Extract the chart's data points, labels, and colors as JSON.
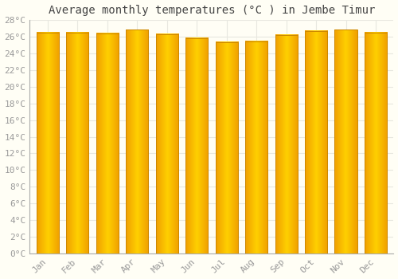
{
  "title": "Average monthly temperatures (°C ) in Jembe Timur",
  "months": [
    "Jan",
    "Feb",
    "Mar",
    "Apr",
    "May",
    "Jun",
    "Jul",
    "Aug",
    "Sep",
    "Oct",
    "Nov",
    "Dec"
  ],
  "temperatures": [
    26.5,
    26.5,
    26.4,
    26.8,
    26.3,
    25.8,
    25.3,
    25.4,
    26.2,
    26.7,
    26.8,
    26.5
  ],
  "ylim": [
    0,
    28
  ],
  "yticks": [
    0,
    2,
    4,
    6,
    8,
    10,
    12,
    14,
    16,
    18,
    20,
    22,
    24,
    26,
    28
  ],
  "bar_color_center": "#FFD000",
  "bar_color_edge": "#F0A000",
  "bar_edge_color": "#CC8800",
  "background_color": "#FFFEF5",
  "grid_color": "#E8E8E0",
  "title_fontsize": 10,
  "tick_fontsize": 8,
  "tick_color": "#999999",
  "title_color": "#444444"
}
